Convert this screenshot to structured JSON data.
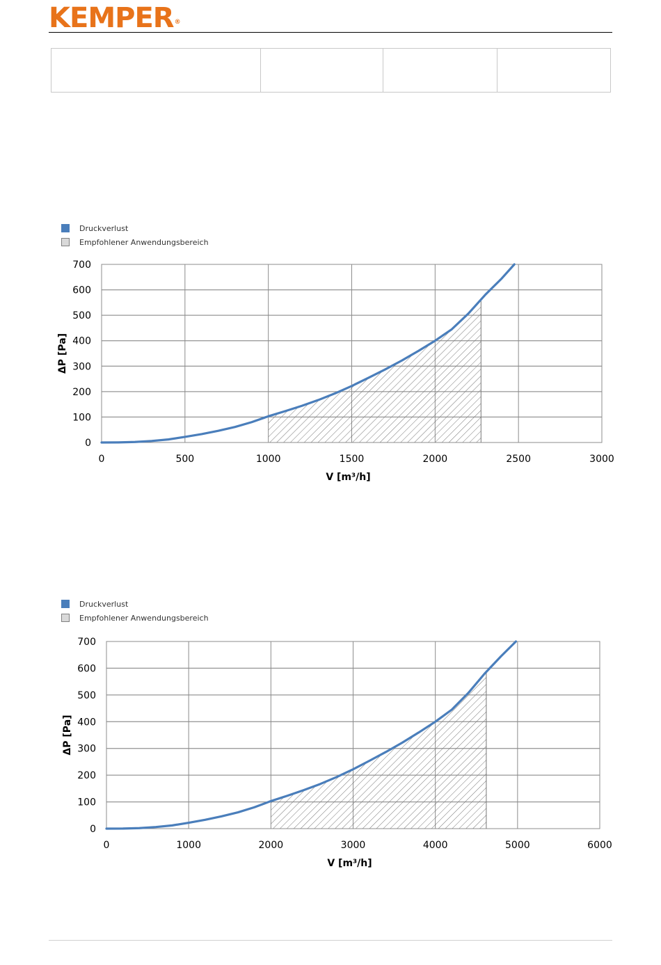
{
  "brand": {
    "name": "KEMPER",
    "registered_mark": "®",
    "color": "#e8731a"
  },
  "header_table": {
    "cells": [
      "",
      "",
      "",
      ""
    ]
  },
  "colors": {
    "curve": "#4a7ebb",
    "grid": "#8c8c8c",
    "hatch": "#555555",
    "area_swatch": "#d9d9d9"
  },
  "chart_data": [
    {
      "type": "line",
      "legend": {
        "placement": "top-left",
        "entries": [
          "Druckverlust",
          "Empfohlener Anwendungsbereich"
        ]
      },
      "xlabel": "V [m³/h]",
      "ylabel": "ΔP [Pa]",
      "xlim": [
        0,
        3000
      ],
      "ylim": [
        0,
        700
      ],
      "xticks": [
        0,
        500,
        1000,
        1500,
        2000,
        2500,
        3000
      ],
      "yticks": [
        0,
        100,
        200,
        300,
        400,
        500,
        600,
        700
      ],
      "grid": true,
      "series": [
        {
          "name": "Druckverlust",
          "x": [
            0,
            100,
            200,
            300,
            400,
            500,
            600,
            700,
            800,
            900,
            1000,
            1100,
            1200,
            1300,
            1400,
            1500,
            1600,
            1700,
            1800,
            1900,
            2000,
            2100,
            2200,
            2300,
            2400,
            2475
          ],
          "y": [
            0,
            0.3,
            2,
            6,
            12,
            22,
            33,
            46,
            61,
            80,
            103,
            123,
            144,
            167,
            193,
            222,
            254,
            287,
            322,
            360,
            400,
            445,
            507,
            580,
            645,
            700
          ]
        }
      ],
      "recommended_range": {
        "name": "Empfohlener Anwendungsbereich",
        "x_start": 1000,
        "x_end": 2275
      }
    },
    {
      "type": "line",
      "legend": {
        "placement": "top-left",
        "entries": [
          "Druckverlust",
          "Empfohlener Anwendungsbereich"
        ]
      },
      "xlabel": "V [m³/h]",
      "ylabel": "ΔP [Pa]",
      "xlim": [
        0,
        6000
      ],
      "ylim": [
        0,
        700
      ],
      "xticks": [
        0,
        1000,
        2000,
        3000,
        4000,
        5000,
        6000
      ],
      "yticks": [
        0,
        100,
        200,
        300,
        400,
        500,
        600,
        700
      ],
      "grid": true,
      "series": [
        {
          "name": "Druckverlust",
          "x": [
            0,
            200,
            400,
            600,
            800,
            1000,
            1200,
            1400,
            1600,
            1800,
            2000,
            2200,
            2400,
            2600,
            2800,
            3000,
            3200,
            3400,
            3600,
            3800,
            4000,
            4200,
            4400,
            4600,
            4800,
            4980
          ],
          "y": [
            0,
            0.3,
            2,
            6,
            12,
            22,
            33,
            46,
            61,
            80,
            103,
            123,
            144,
            167,
            193,
            222,
            254,
            287,
            322,
            360,
            400,
            445,
            507,
            580,
            645,
            700
          ]
        }
      ],
      "recommended_range": {
        "name": "Empfohlener Anwendungsbereich",
        "x_start": 2000,
        "x_end": 4620
      }
    }
  ]
}
